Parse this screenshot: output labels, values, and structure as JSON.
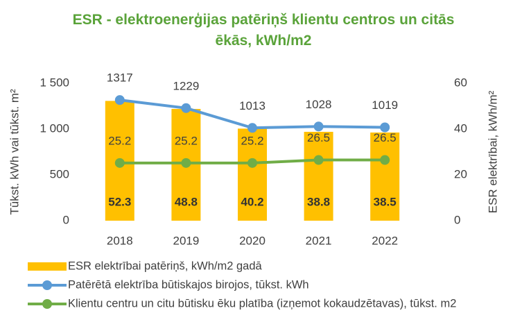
{
  "chart_data": {
    "type": "combo",
    "title": "ESR - elektroenerģijas patēriņš klientu centros un citās ēkās, kWh/m2",
    "ylabel": "Tūkst. kWh vai tūkst. m²",
    "y2label": "ESR elektrībai, kWh/m²",
    "categories": [
      "2018",
      "2019",
      "2020",
      "2021",
      "2022"
    ],
    "ylim": [
      0,
      1500
    ],
    "yticks": [
      0,
      500,
      {
        "value": 1000,
        "label": "1 000"
      },
      {
        "value": 1500,
        "label": "1 500"
      }
    ],
    "y2lim": [
      0,
      60
    ],
    "y2ticks": [
      0,
      20,
      40,
      60
    ],
    "series": [
      {
        "name": "ESR elektrībai patēriņš, kWh/m2 gadā",
        "type": "bar",
        "axis": "y2",
        "color": "#ffc000",
        "values": [
          52.3,
          48.8,
          40.2,
          38.8,
          38.5
        ]
      },
      {
        "name": "Patērētā elektrība būtiskajos birojos, tūkst. kWh",
        "type": "line",
        "axis": "y",
        "color": "#5b9bd5",
        "values": [
          1317,
          1229,
          1013,
          1028,
          1019
        ]
      },
      {
        "name": "Klientu centru un citu būtisku ēku platība (izņemot kokaudzētavas), tūkst. m2",
        "type": "line",
        "axis": "y2",
        "color": "#70ad47",
        "values": [
          25.2,
          25.2,
          25.2,
          26.5,
          26.5
        ]
      }
    ]
  }
}
